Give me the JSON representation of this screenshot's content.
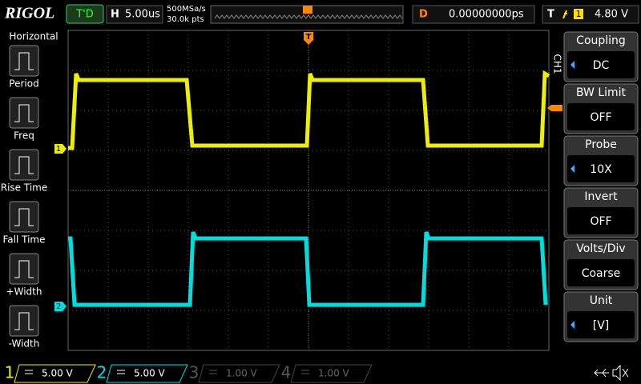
{
  "header": {
    "brand": "RIGOL",
    "status": "T'D",
    "horizontal_label": "H",
    "timebase": "5.00us",
    "sample_rate": "500MSa/s",
    "memory_depth": "30.0k pts",
    "delay_label": "D",
    "delay": "0.00000000ps",
    "trigger_label": "T",
    "trigger_source": "1",
    "trigger_level": "4.80 V"
  },
  "left_menu": {
    "title": "Horizontal",
    "items": [
      "Period",
      "Freq",
      "Rise Time",
      "Fall Time",
      "+Width",
      "-Width"
    ]
  },
  "right_menu": {
    "channel": "CH1",
    "items": [
      {
        "label": "Coupling",
        "value": "DC"
      },
      {
        "label": "BW Limit",
        "value": "OFF"
      },
      {
        "label": "Probe",
        "value": "10X"
      },
      {
        "label": "Invert",
        "value": "OFF"
      },
      {
        "label": "Volts/Div",
        "value": "Coarse"
      },
      {
        "label": "Unit",
        "value": "[V]"
      }
    ]
  },
  "channels": [
    {
      "number": "1",
      "scale": "5.00 V"
    },
    {
      "number": "2",
      "scale": "5.00 V"
    },
    {
      "number": "3",
      "scale": "1.00 V"
    },
    {
      "number": "4",
      "scale": "1.00 V"
    }
  ],
  "markers": {
    "trigger": "T",
    "ch1": "1",
    "ch2": "2"
  }
}
